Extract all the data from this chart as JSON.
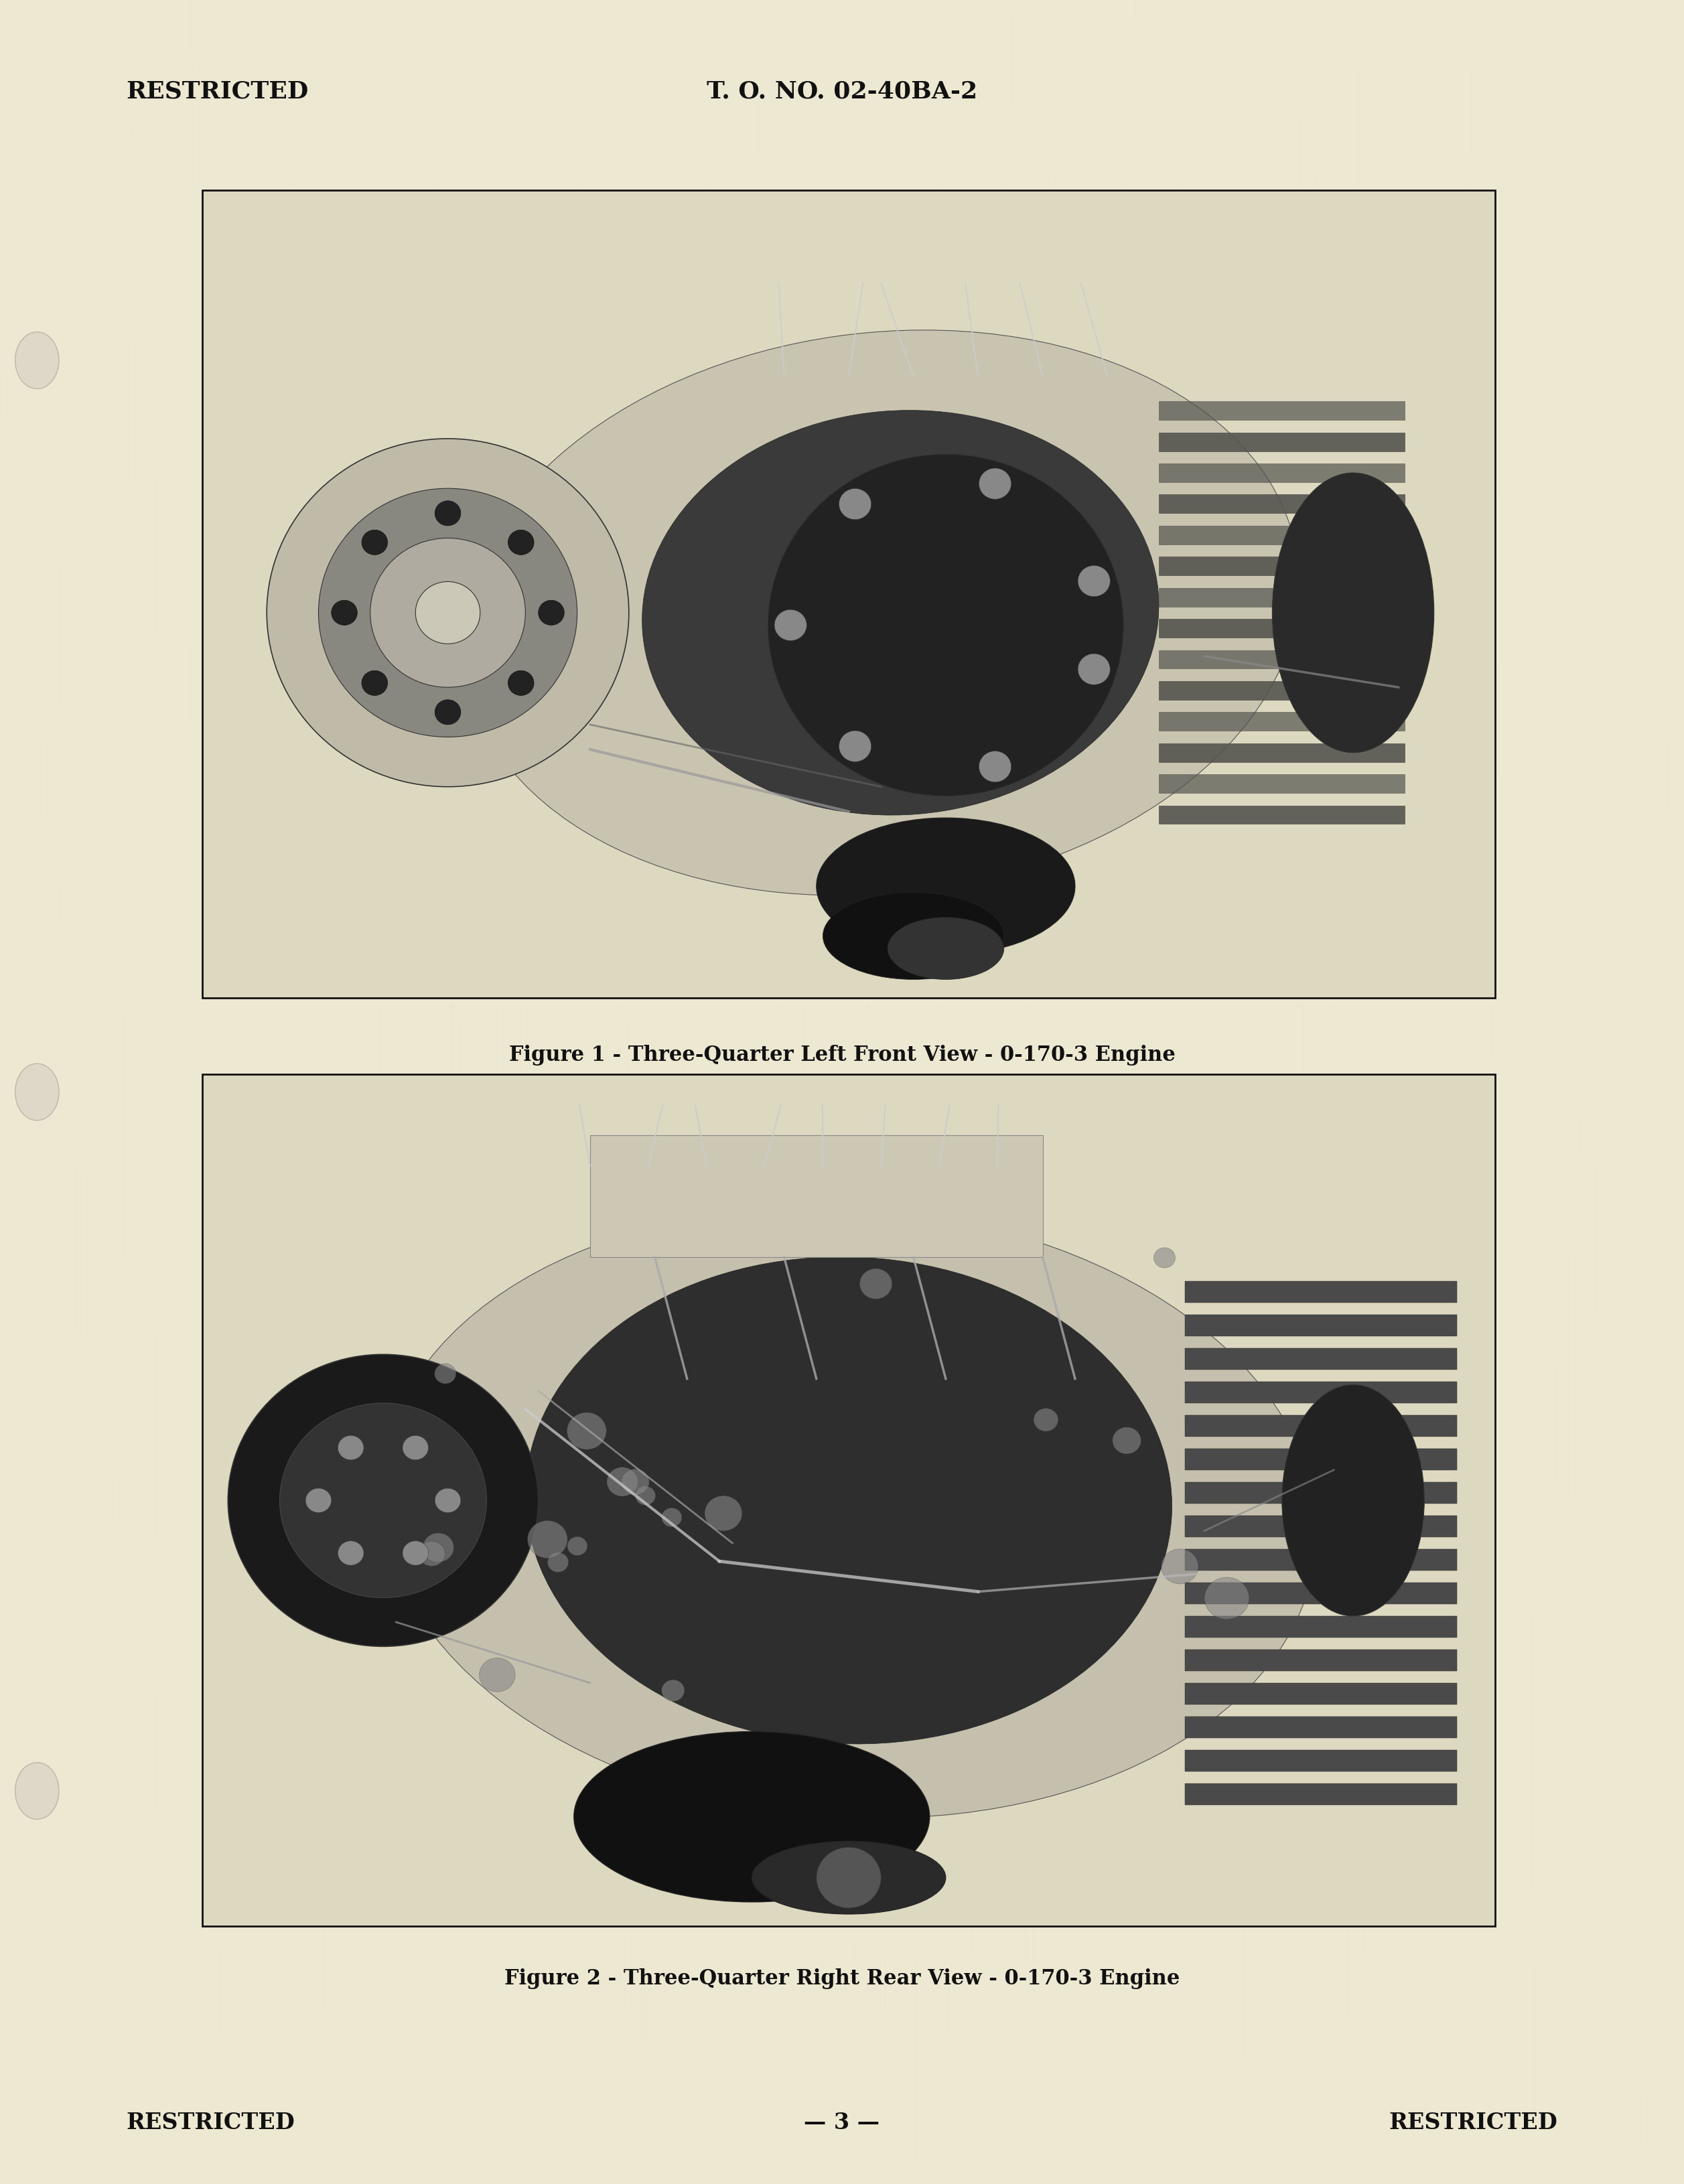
{
  "page_bg_color": "#ede8d2",
  "header_left": "RESTRICTED",
  "header_center": "T. O. NO. 02-40BA-2",
  "footer_left": "RESTRICTED",
  "footer_center": "— 3 —",
  "footer_right": "RESTRICTED",
  "fig1_caption": "Figure 1 - Three-Quarter Left Front View - 0-170-3 Engine",
  "fig2_caption": "Figure 2 - Three-Quarter Right Rear View - 0-170-3 Engine",
  "text_color": "#111111",
  "border_color": "#111111",
  "font_size_header": 26,
  "font_size_caption": 22,
  "font_size_footer": 24,
  "photo_bg": "#ddd8c0",
  "engine_dark": "#111111",
  "engine_mid": "#444444",
  "engine_light": "#aaaaaa"
}
